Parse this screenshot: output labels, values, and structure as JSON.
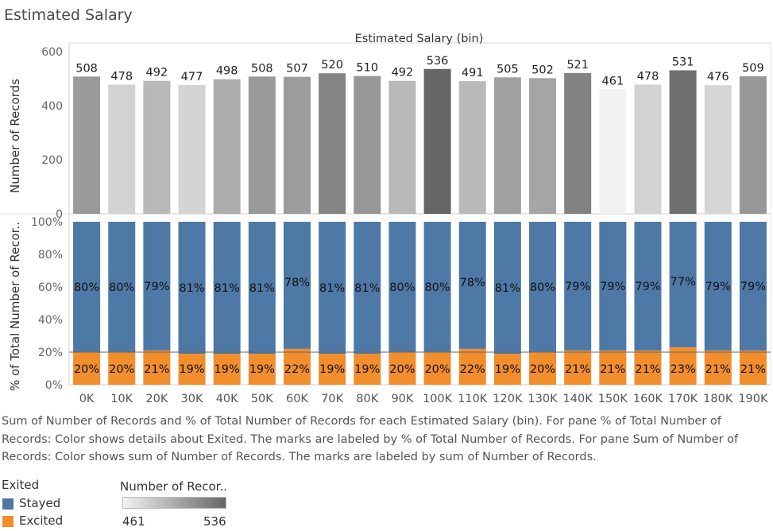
{
  "page_title": "Estimated Salary",
  "chart_data": {
    "type": "bar",
    "column_header": "Estimated Salary (bin)",
    "categories": [
      "0K",
      "10K",
      "20K",
      "30K",
      "40K",
      "50K",
      "60K",
      "70K",
      "80K",
      "90K",
      "100K",
      "110K",
      "120K",
      "130K",
      "140K",
      "150K",
      "160K",
      "170K",
      "180K",
      "190K"
    ],
    "top_pane": {
      "ylabel": "Number of Records",
      "ylim": [
        0,
        600
      ],
      "yticks": [
        "0",
        "200",
        "400",
        "600"
      ],
      "values": [
        508,
        478,
        492,
        477,
        498,
        508,
        507,
        520,
        510,
        492,
        536,
        491,
        505,
        502,
        521,
        461,
        478,
        531,
        476,
        509
      ],
      "color_range": [
        461,
        536
      ]
    },
    "bottom_pane": {
      "ylabel": "% of Total Number of Recor..",
      "ylim": [
        0,
        100
      ],
      "yticks": [
        "0%",
        "20%",
        "40%",
        "60%",
        "80%",
        "100%"
      ],
      "series": [
        {
          "name": "Stayed",
          "values": [
            80,
            80,
            79,
            81,
            81,
            81,
            78,
            81,
            81,
            80,
            80,
            78,
            81,
            80,
            79,
            79,
            79,
            77,
            79,
            79
          ],
          "labels": [
            "80%",
            "80%",
            "79%",
            "81%",
            "81%",
            "81%",
            "78%",
            "81%",
            "81%",
            "80%",
            "80%",
            "78%",
            "81%",
            "80%",
            "79%",
            "79%",
            "79%",
            "77%",
            "79%",
            "79%"
          ]
        },
        {
          "name": "Excited",
          "values": [
            20,
            20,
            21,
            19,
            19,
            19,
            22,
            19,
            19,
            20,
            20,
            22,
            19,
            20,
            21,
            21,
            21,
            23,
            21,
            21
          ],
          "labels": [
            "20%",
            "20%",
            "21%",
            "19%",
            "19%",
            "19%",
            "22%",
            "19%",
            "19%",
            "20%",
            "20%",
            "22%",
            "19%",
            "20%",
            "21%",
            "21%",
            "21%",
            "23%",
            "21%",
            "21%"
          ]
        }
      ],
      "reference_line": 20
    }
  },
  "colors": {
    "stayed": "#4e79a7",
    "excited": "#f28e2b",
    "gradient_low": "#f2f2f2",
    "gradient_high": "#666666"
  },
  "caption": "Sum of Number of Records and % of Total Number of Records for each Estimated Salary (bin).  For pane % of Total Number of Records:  Color shows details about Exited.  The marks are labeled by % of Total Number of Records.  For pane Sum of Number of Records:  Color shows sum of Number of Records.  The marks are labeled by sum of Number of Records.",
  "legend": {
    "exited_title": "Exited",
    "exited_items": [
      {
        "label": "Stayed",
        "color": "#4e79a7"
      },
      {
        "label": "Excited",
        "color": "#f28e2b"
      }
    ],
    "size_title": "Number of Recor..",
    "size_min": "461",
    "size_max": "536"
  }
}
